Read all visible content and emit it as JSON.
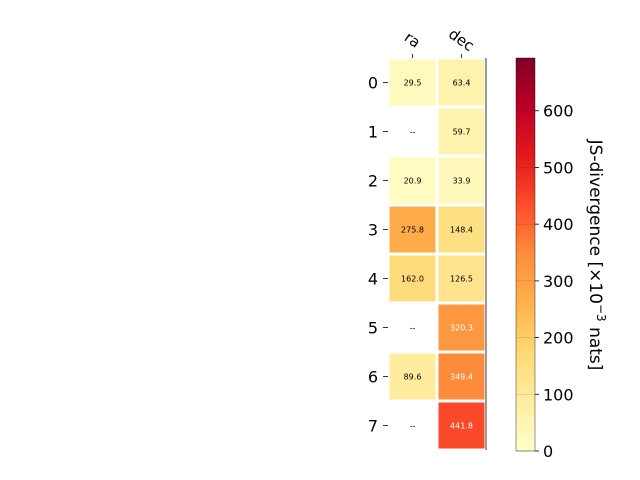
{
  "chart_data": {
    "type": "heatmap",
    "x_categories": [
      "ra",
      "dec"
    ],
    "y_categories": [
      "0",
      "1",
      "2",
      "3",
      "4",
      "5",
      "6",
      "7"
    ],
    "values": [
      [
        29.5,
        63.4
      ],
      [
        null,
        59.7
      ],
      [
        20.9,
        33.9
      ],
      [
        275.8,
        148.4
      ],
      [
        162.0,
        126.5
      ],
      [
        null,
        320.3
      ],
      [
        89.6,
        349.4
      ],
      [
        null,
        441.8
      ]
    ],
    "cell_labels": [
      [
        "29.5",
        "63.4"
      ],
      [
        "--",
        "59.7"
      ],
      [
        "20.9",
        "33.9"
      ],
      [
        "275.8",
        "148.4"
      ],
      [
        "162.0",
        "126.5"
      ],
      [
        "--",
        "320.3"
      ],
      [
        "89.6",
        "349.4"
      ],
      [
        "--",
        "441.8"
      ]
    ],
    "colorbar": {
      "label_prefix": "JS-divergence [×10",
      "label_exponent": "−3",
      "label_suffix": " nats]",
      "ticks": [
        "0",
        "100",
        "200",
        "300",
        "400",
        "500",
        "600"
      ],
      "tick_values": [
        0,
        100,
        200,
        300,
        400,
        500,
        600
      ],
      "range": [
        0,
        693
      ],
      "colormap": "YlOrRd",
      "colormap_stops": [
        "#ffffcc",
        "#ffeda0",
        "#fed976",
        "#feb24c",
        "#fd8d3c",
        "#fc4e2a",
        "#e31a1c",
        "#bd0026",
        "#800026"
      ]
    },
    "grid": false
  }
}
